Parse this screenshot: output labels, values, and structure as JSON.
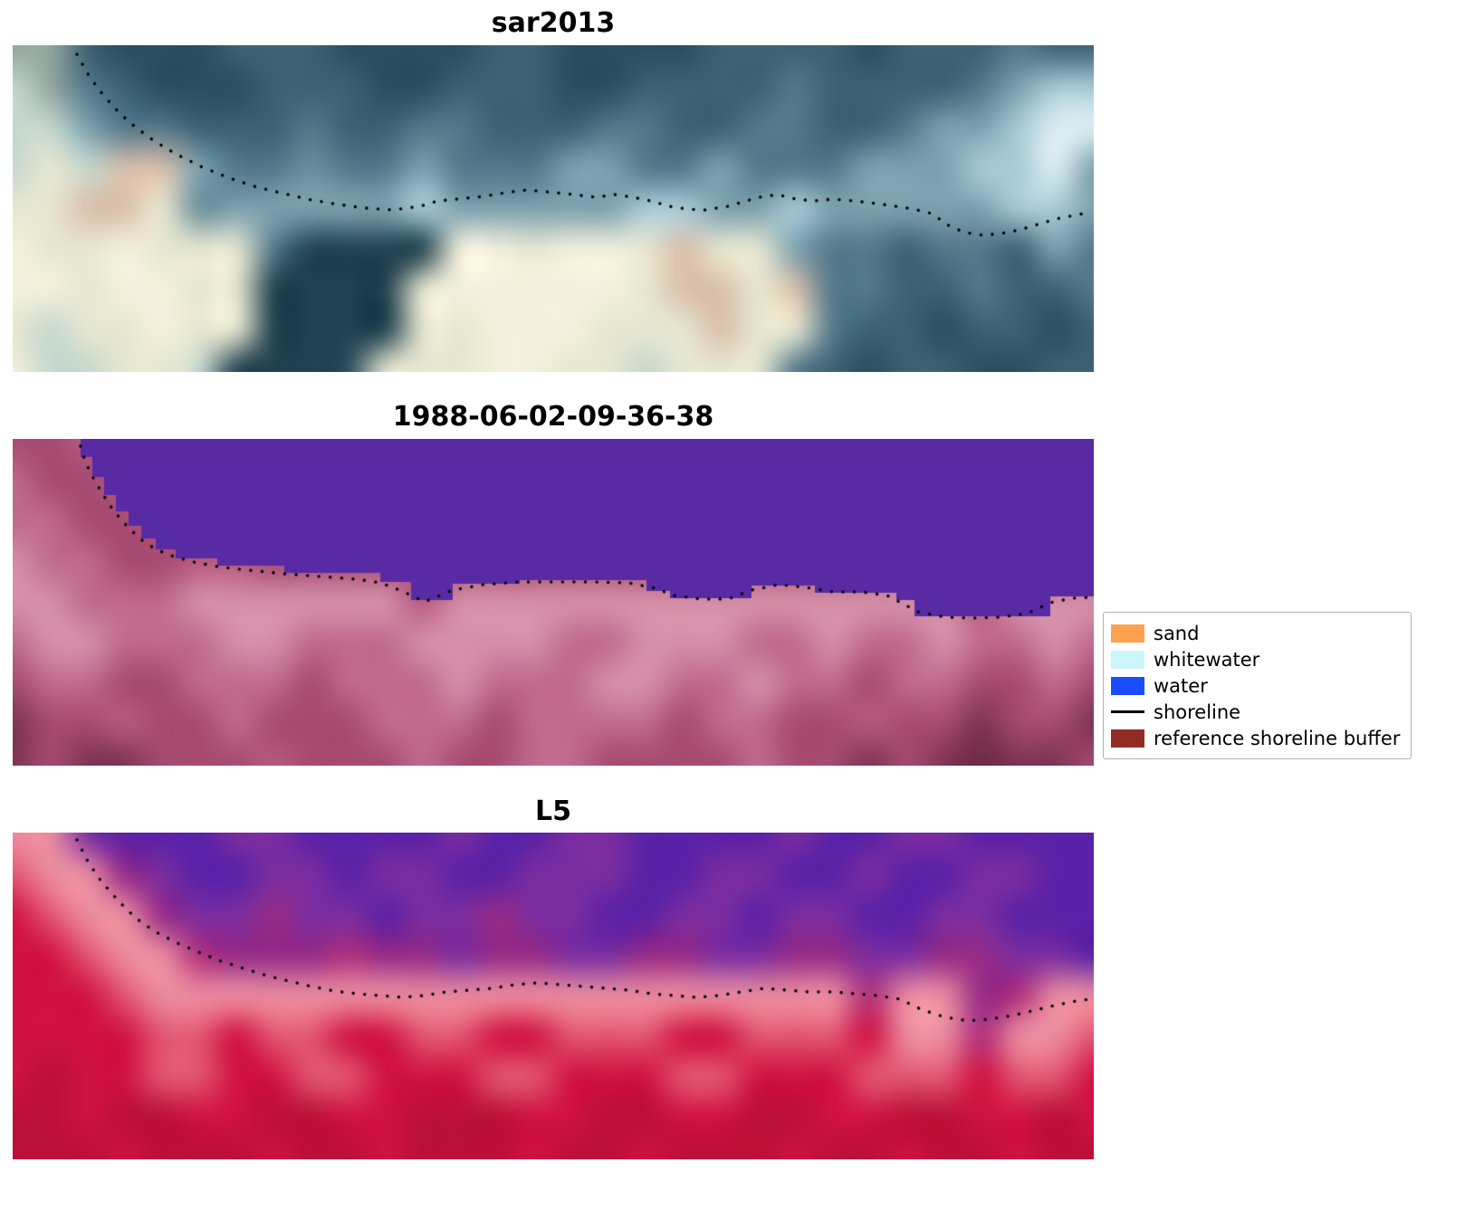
{
  "legend": {
    "entries": [
      {
        "label": "sand",
        "type": "patch",
        "color": "#ffa14e"
      },
      {
        "label": "whitewater",
        "type": "patch",
        "color": "#ccf6fa"
      },
      {
        "label": "water",
        "type": "patch",
        "color": "#1a4dff"
      },
      {
        "label": "shoreline",
        "type": "line",
        "color": "#000000"
      },
      {
        "label": "reference shoreline buffer",
        "type": "patch",
        "color": "#922d26"
      }
    ]
  },
  "chart_data": [
    {
      "type": "heatmap",
      "title": "sar2013",
      "shoreline_color": "#000000",
      "palette": {
        "A": "#2b4d60",
        "B": "#3c6175",
        "C": "#54798a",
        "D": "#7da2af",
        "E": "#a9cbd6",
        "F": "#ddeef3",
        "G": "#e7e7d1",
        "H": "#f3f1dd",
        "I": "#d9c0ac",
        "J": "#93a79e",
        "K": "#20414f",
        "L": "#6b8f9b",
        "M": "#c6d8cd"
      },
      "rows": [
        "JJBAAABBBAAAABBAAAABBBBABBBCBB",
        "MJCBAAABBBAABBBAABBBBCBBBBCDEE",
        "MMDCCBBBCBBCCBBBCCBBCCBBCDDEFF",
        "MGMIIDCCLCCDCCCDDCCDCCCDDDEEFD",
        "GGIIGLDDDDDEDDDDDEEDDEDDDDDEED",
        "HGGHGGGCKKKKHHGHHGIGGDCCBCCBDC",
        "HHGHHGGKKKKGHHHHHGIIGICCBBCBBC",
        "GMGGHGGKKKKGGHHHGGGIGGCBBABBAB",
        "HMMGGMKKKAGGGHHGGMGGGCBABBAABB"
      ],
      "shoreline": [
        [
          71,
          10
        ],
        [
          85,
          35
        ],
        [
          100,
          55
        ],
        [
          118,
          75
        ],
        [
          135,
          90
        ],
        [
          155,
          105
        ],
        [
          180,
          120
        ],
        [
          210,
          135
        ],
        [
          240,
          147
        ],
        [
          270,
          157
        ],
        [
          300,
          164
        ],
        [
          330,
          171
        ],
        [
          360,
          176
        ],
        [
          390,
          180
        ],
        [
          420,
          182
        ],
        [
          450,
          178
        ],
        [
          470,
          172
        ],
        [
          490,
          170
        ],
        [
          520,
          167
        ],
        [
          550,
          162
        ],
        [
          568,
          160
        ],
        [
          590,
          162
        ],
        [
          620,
          165
        ],
        [
          645,
          168
        ],
        [
          665,
          165
        ],
        [
          685,
          168
        ],
        [
          705,
          172
        ],
        [
          725,
          178
        ],
        [
          745,
          181
        ],
        [
          765,
          182
        ],
        [
          790,
          178
        ],
        [
          810,
          172
        ],
        [
          825,
          168
        ],
        [
          845,
          165
        ],
        [
          865,
          170
        ],
        [
          885,
          172
        ],
        [
          905,
          170
        ],
        [
          930,
          172
        ],
        [
          955,
          175
        ],
        [
          975,
          178
        ],
        [
          995,
          181
        ],
        [
          1015,
          186
        ],
        [
          1035,
          200
        ],
        [
          1052,
          207
        ],
        [
          1072,
          210
        ],
        [
          1092,
          208
        ],
        [
          1112,
          204
        ],
        [
          1132,
          198
        ],
        [
          1152,
          192
        ],
        [
          1172,
          188
        ],
        [
          1188,
          185
        ]
      ]
    },
    {
      "type": "heatmap",
      "title": "1988-06-02-09-36-38",
      "shoreline_color": "#000000",
      "water_color": "#582aa3",
      "palette": {
        "A": "#7e3354",
        "B": "#a64a72",
        "C": "#c06a8e",
        "D": "#d590a9",
        "E": "#b85a80",
        "F": "#6e2a48"
      },
      "rows": [
        "BBEBBBBBBBBBBBBBBBBBBBBBBBBBBB",
        "CBBEBBBBBBBBBBBBBBBBBBBBBBBBBB",
        "CCBBEBBBBBBBBBBBBBBBBBBBBBBBBB",
        "DCCBBEEBBBBBBBBBBBBBBBBBBBBBBB",
        "DDCCCDDDDDDEDDDDDDDDDDDDDDEDDD",
        "CDDCCCDDCCCDDDDCCDDDCCDCCDCCDC",
        "BCCBBCCCBCCCDCCCDDCCDCCBCCBBCB",
        "ABBEBBCBBBCCCBCCCCBCCBBEBBABBA",
        "ABAABBBEBBBCBBCCBBBBCBBABAFAAB"
      ],
      "water_polygon": [
        [
          75,
          0
        ],
        [
          75,
          20
        ],
        [
          88,
          20
        ],
        [
          88,
          42
        ],
        [
          101,
          42
        ],
        [
          101,
          62
        ],
        [
          114,
          62
        ],
        [
          114,
          80
        ],
        [
          128,
          80
        ],
        [
          128,
          96
        ],
        [
          142,
          96
        ],
        [
          142,
          110
        ],
        [
          158,
          110
        ],
        [
          158,
          122
        ],
        [
          180,
          122
        ],
        [
          180,
          132
        ],
        [
          226,
          132
        ],
        [
          226,
          140
        ],
        [
          300,
          140
        ],
        [
          300,
          148
        ],
        [
          406,
          148
        ],
        [
          406,
          158
        ],
        [
          440,
          158
        ],
        [
          440,
          178
        ],
        [
          486,
          178
        ],
        [
          486,
          160
        ],
        [
          560,
          160
        ],
        [
          560,
          156
        ],
        [
          700,
          156
        ],
        [
          700,
          168
        ],
        [
          726,
          168
        ],
        [
          726,
          176
        ],
        [
          816,
          176
        ],
        [
          816,
          162
        ],
        [
          886,
          162
        ],
        [
          886,
          170
        ],
        [
          976,
          170
        ],
        [
          976,
          178
        ],
        [
          996,
          178
        ],
        [
          996,
          196
        ],
        [
          1146,
          196
        ],
        [
          1146,
          174
        ],
        [
          1194,
          174
        ],
        [
          1194,
          0
        ]
      ],
      "shoreline": [
        [
          75,
          8
        ],
        [
          80,
          25
        ],
        [
          90,
          45
        ],
        [
          100,
          62
        ],
        [
          112,
          80
        ],
        [
          126,
          96
        ],
        [
          140,
          110
        ],
        [
          158,
          122
        ],
        [
          178,
          130
        ],
        [
          200,
          136
        ],
        [
          226,
          141
        ],
        [
          260,
          145
        ],
        [
          300,
          149
        ],
        [
          340,
          152
        ],
        [
          380,
          155
        ],
        [
          406,
          159
        ],
        [
          430,
          168
        ],
        [
          455,
          180
        ],
        [
          486,
          167
        ],
        [
          520,
          161
        ],
        [
          560,
          158
        ],
        [
          600,
          158
        ],
        [
          640,
          158
        ],
        [
          680,
          159
        ],
        [
          710,
          165
        ],
        [
          730,
          173
        ],
        [
          760,
          177
        ],
        [
          790,
          177
        ],
        [
          816,
          167
        ],
        [
          846,
          161
        ],
        [
          876,
          164
        ],
        [
          906,
          169
        ],
        [
          936,
          169
        ],
        [
          966,
          173
        ],
        [
          1000,
          191
        ],
        [
          1030,
          197
        ],
        [
          1060,
          198
        ],
        [
          1090,
          197
        ],
        [
          1120,
          193
        ],
        [
          1146,
          181
        ],
        [
          1170,
          176
        ],
        [
          1190,
          175
        ]
      ]
    },
    {
      "type": "heatmap",
      "title": "L5",
      "shoreline_color": "#000000",
      "palette": {
        "P": "#5a21a6",
        "Q": "#7b2da0",
        "R": "#962b86",
        "S": "#b0307c",
        "A": "#d01242",
        "B": "#ba0f38",
        "C": "#e25573",
        "D": "#ec8da0"
      },
      "rows": [
        "DDQPPPQQPPPPQPPQQPPPPQPPQQPPPP",
        "CDDRQPPQQPQQPPQQQPPQQPPQPPQQPP",
        "ACDDRQQRQQPQQRQQPPQQPQQPPQQPPP",
        "AACDDSRRRSRRQRRQQRRQQRRQQRRQQP",
        "AAACDDDDDDDDDDDDDDDDDDDSDDRSDD",
        "AAAACCACCAACCAACCCAACCCADDSDDC",
        "ABAACCAACCAAACCAAACCAAACCCACCA",
        "BBABBAABBAABBBAABBAABBAABBAABA",
        "BBBABBBABBABBBABBABBBABBABBABB"
      ],
      "shoreline": [
        [
          71,
          8
        ],
        [
          82,
          30
        ],
        [
          95,
          50
        ],
        [
          110,
          68
        ],
        [
          126,
          85
        ],
        [
          143,
          100
        ],
        [
          162,
          112
        ],
        [
          182,
          122
        ],
        [
          205,
          132
        ],
        [
          230,
          142
        ],
        [
          255,
          150
        ],
        [
          280,
          158
        ],
        [
          305,
          164
        ],
        [
          330,
          170
        ],
        [
          355,
          175
        ],
        [
          380,
          178
        ],
        [
          405,
          180
        ],
        [
          430,
          182
        ],
        [
          455,
          180
        ],
        [
          480,
          176
        ],
        [
          505,
          174
        ],
        [
          530,
          172
        ],
        [
          555,
          168
        ],
        [
          580,
          166
        ],
        [
          605,
          168
        ],
        [
          630,
          170
        ],
        [
          655,
          172
        ],
        [
          680,
          174
        ],
        [
          705,
          178
        ],
        [
          730,
          180
        ],
        [
          755,
          182
        ],
        [
          780,
          180
        ],
        [
          805,
          176
        ],
        [
          830,
          172
        ],
        [
          855,
          174
        ],
        [
          880,
          176
        ],
        [
          905,
          176
        ],
        [
          930,
          178
        ],
        [
          955,
          180
        ],
        [
          980,
          184
        ],
        [
          1005,
          196
        ],
        [
          1030,
          204
        ],
        [
          1055,
          208
        ],
        [
          1080,
          206
        ],
        [
          1105,
          202
        ],
        [
          1130,
          196
        ],
        [
          1155,
          190
        ],
        [
          1175,
          186
        ],
        [
          1190,
          184
        ]
      ]
    }
  ]
}
